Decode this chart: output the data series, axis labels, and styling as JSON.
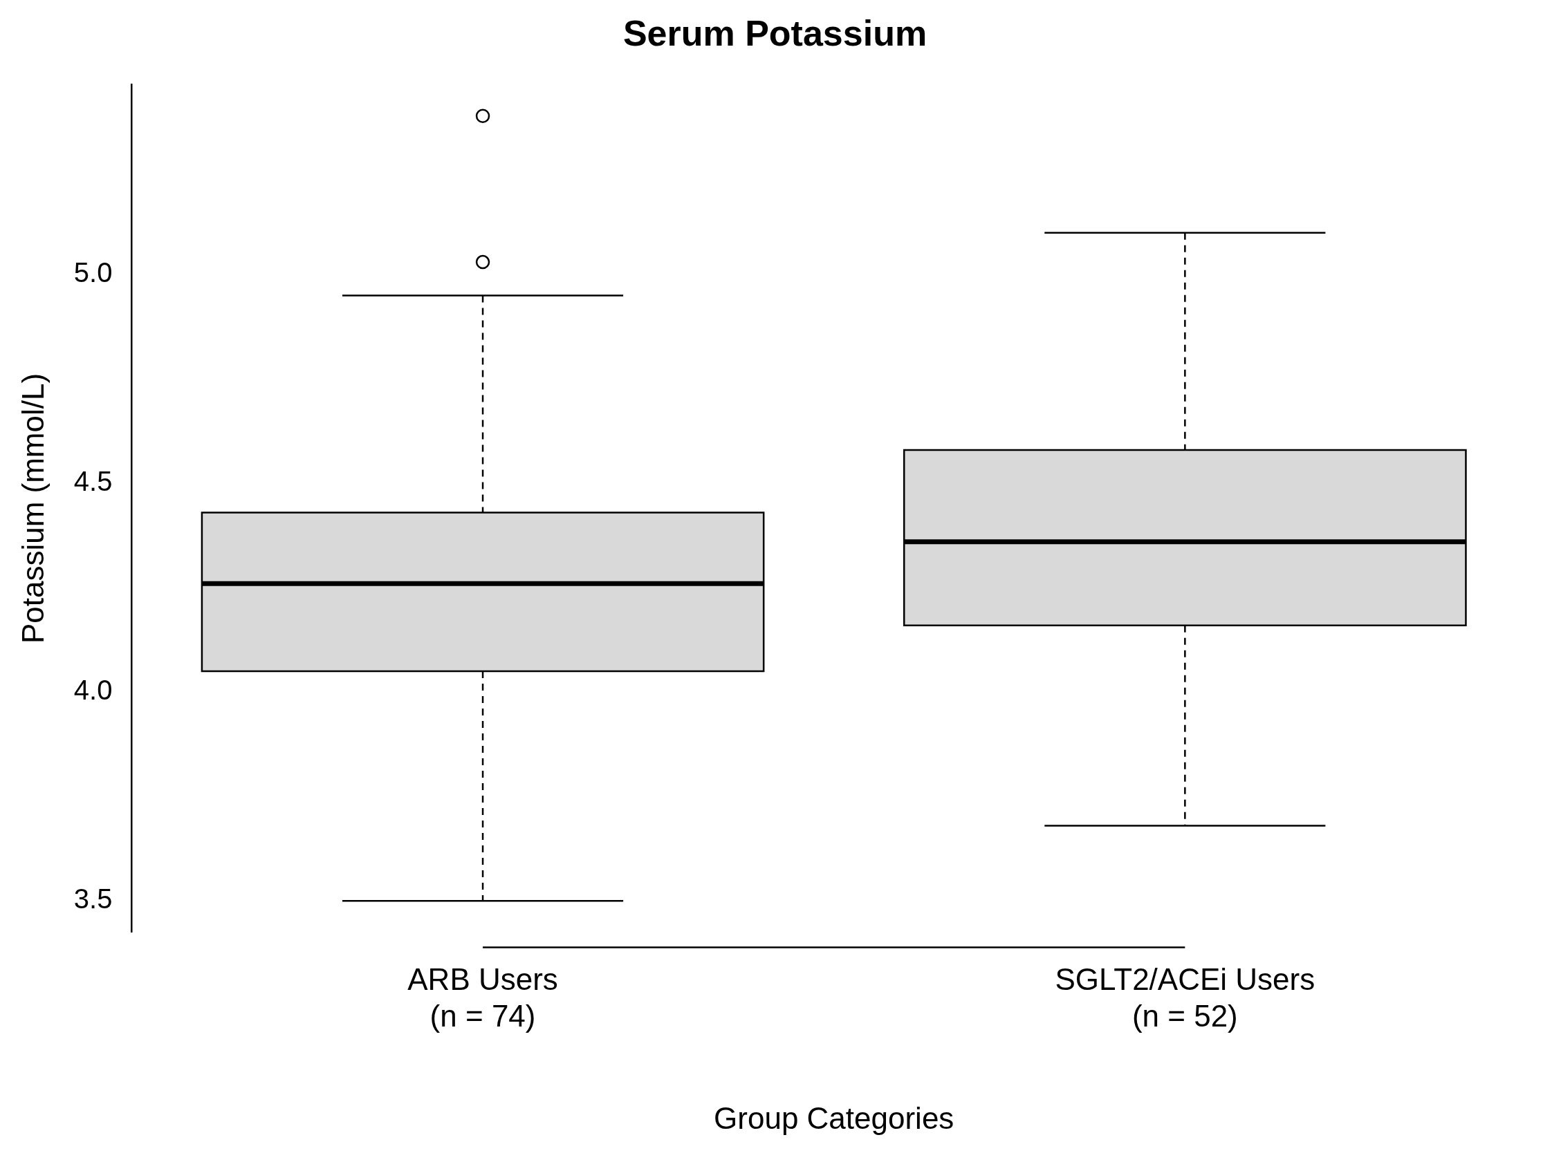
{
  "chart_data": {
    "type": "box",
    "title": "Serum Potassium",
    "xlabel": "Group Categories",
    "ylabel": "Potassium (mmol/L)",
    "categories": [
      "ARB Users\n(n = 74)",
      "SGLT2/ACEi Users\n(n = 52)"
    ],
    "color": "#d9d9d9",
    "boxes": [
      {
        "low": 3.5,
        "q1": 4.05,
        "median": 4.26,
        "q3": 4.43,
        "high": 4.95,
        "outliers": [
          5.03,
          5.38
        ]
      },
      {
        "low": 3.68,
        "q1": 4.16,
        "median": 4.36,
        "q3": 4.58,
        "high": 5.1
      }
    ],
    "ylim": [
      3.425,
      5.455
    ],
    "yticks": [
      3.5,
      {
        "value": 4,
        "label": "4.0"
      },
      4.5,
      {
        "value": 5,
        "label": "5.0"
      }
    ],
    "grid": false,
    "legend": false
  }
}
